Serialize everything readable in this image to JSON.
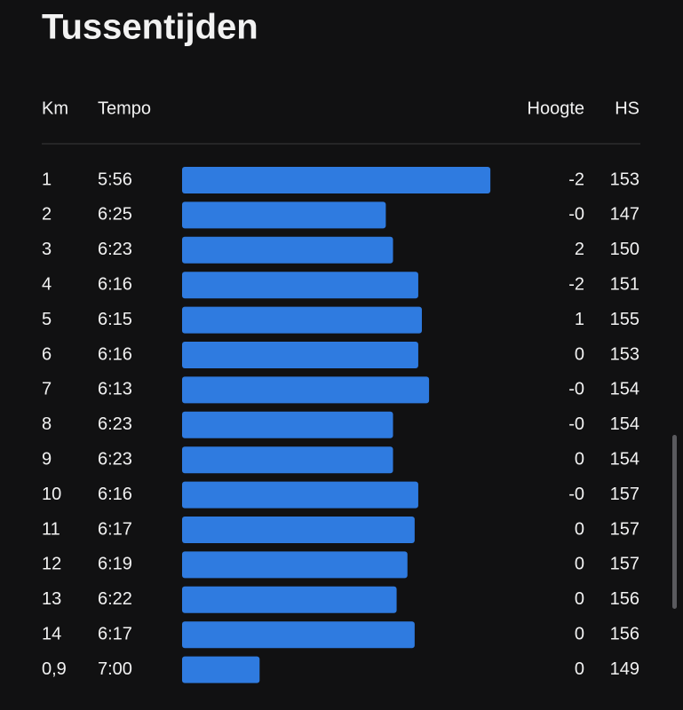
{
  "header": {
    "title": "Tussentijden"
  },
  "table": {
    "columns": [
      "Km",
      "Tempo",
      "Hoogte",
      "HS"
    ],
    "rows": [
      [
        "1",
        "5:56",
        "-2",
        "153"
      ],
      [
        "2",
        "6:25",
        "-0",
        "147"
      ],
      [
        "3",
        "6:23",
        "2",
        "150"
      ],
      [
        "4",
        "6:16",
        "-2",
        "151"
      ],
      [
        "5",
        "6:15",
        "1",
        "155"
      ],
      [
        "6",
        "6:16",
        "0",
        "153"
      ],
      [
        "7",
        "6:13",
        "-0",
        "154"
      ],
      [
        "8",
        "6:23",
        "-0",
        "154"
      ],
      [
        "9",
        "6:23",
        "0",
        "154"
      ],
      [
        "10",
        "6:16",
        "-0",
        "157"
      ],
      [
        "11",
        "6:17",
        "0",
        "157"
      ],
      [
        "12",
        "6:19",
        "0",
        "157"
      ],
      [
        "13",
        "6:22",
        "0",
        "156"
      ],
      [
        "14",
        "6:17",
        "0",
        "156"
      ],
      [
        "0,9",
        "7:00",
        "0",
        "149"
      ]
    ]
  }
}
